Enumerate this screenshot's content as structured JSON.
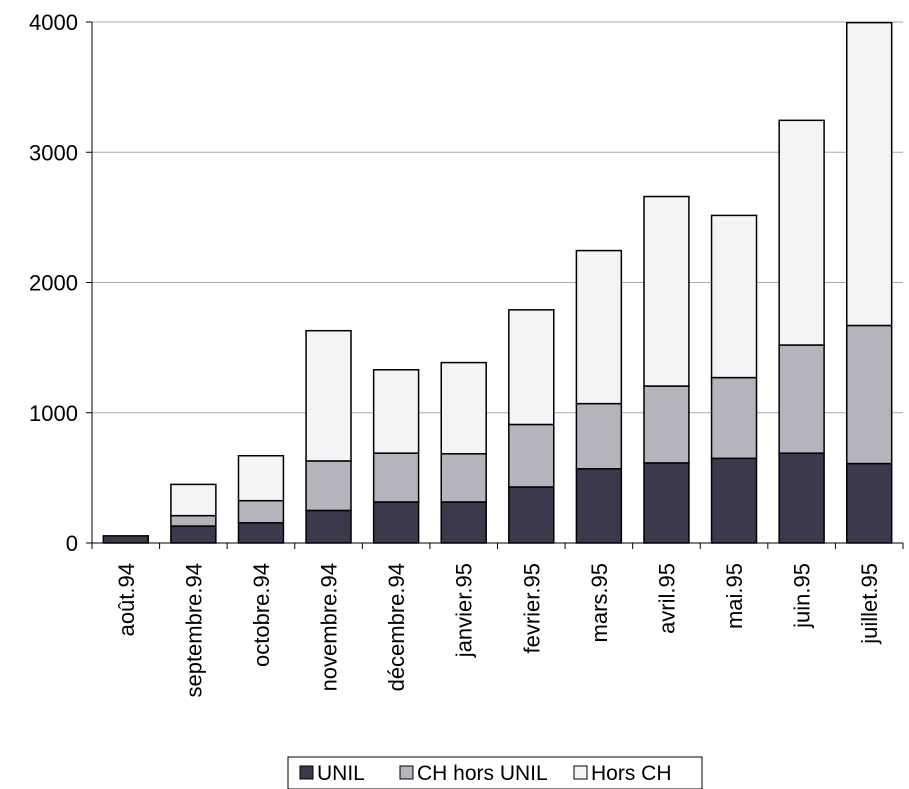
{
  "chart_data": {
    "type": "bar",
    "stacked": true,
    "title": "",
    "xlabel": "",
    "ylabel": "",
    "ylim": [
      0,
      4000
    ],
    "yticks": [
      0,
      1000,
      2000,
      3000,
      4000
    ],
    "ytick_labels": [
      "0",
      "1000",
      "2000",
      "3000",
      "4000"
    ],
    "grid": true,
    "legend_position": "bottom",
    "categories": [
      "août.94",
      "septembre.94",
      "octobre.94",
      "novembre.94",
      "décembre.94",
      "janvier.95",
      "fevrier.95",
      "mars.95",
      "avril.95",
      "mai.95",
      "juin.95",
      "juillet.95"
    ],
    "series": [
      {
        "name": "UNIL",
        "color": "#3a3a4c",
        "values": [
          55,
          130,
          155,
          250,
          315,
          315,
          430,
          570,
          615,
          650,
          690,
          610
        ]
      },
      {
        "name": "CH hors UNIL",
        "color": "#b4b4bc",
        "values": [
          0,
          80,
          170,
          380,
          375,
          370,
          480,
          500,
          590,
          620,
          830,
          1060
        ]
      },
      {
        "name": "Hors CH",
        "color": "#f4f4f6",
        "values": [
          0,
          240,
          345,
          1000,
          640,
          700,
          880,
          1175,
          1455,
          1245,
          1725,
          2325
        ]
      }
    ]
  }
}
